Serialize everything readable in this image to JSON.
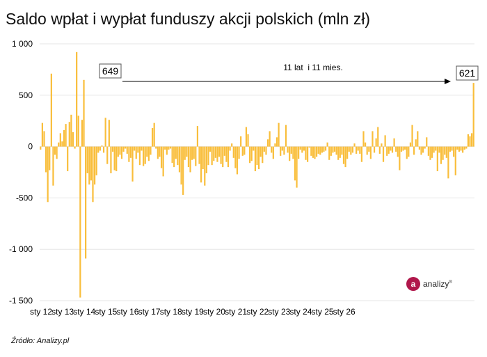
{
  "title": "Saldo wpłat i wypłat funduszy akcji polskich (mln zł)",
  "source": "Źródło: Analizy.pl",
  "logo": {
    "mark": "a",
    "text": "analizy"
  },
  "colors": {
    "bar": "#F9BE3B",
    "grid": "#E6E6E6",
    "axis": "#000000"
  },
  "chart_data": {
    "type": "bar",
    "title": "Saldo wpłat i wypłat funduszy akcji polskich (mln zł)",
    "xlabel": "",
    "ylabel": "",
    "ylim": [
      -1500,
      1000
    ],
    "yticks": [
      1000,
      500,
      0,
      -500,
      -1000,
      -1500
    ],
    "ytick_labels": [
      "1 000",
      "500",
      "0",
      "-500",
      "-1 000",
      "-1 500"
    ],
    "xtick_labels": [
      "sty 12",
      "sty 13",
      "sty 14",
      "sty 15",
      "sty 16",
      "sty 17",
      "sty 18",
      "sty 19",
      "sty 20",
      "sty 21",
      "sty 22",
      "sty 23",
      "sty 24",
      "sty 25",
      "sty 26"
    ],
    "grid": "horizontal",
    "start_period": "sty 12",
    "series": [
      {
        "values": [
          -30,
          230,
          150,
          -250,
          -540,
          -230,
          710,
          -380,
          -80,
          -120,
          40,
          130,
          50,
          160,
          220,
          -240,
          240,
          310,
          140,
          -20,
          920,
          300,
          -1470,
          260,
          649,
          -1090,
          -260,
          -370,
          -330,
          -540,
          -370,
          -280,
          -60,
          -40,
          10,
          -60,
          280,
          -170,
          260,
          -260,
          -50,
          -230,
          -240,
          -100,
          -80,
          -120,
          -50,
          -20,
          -70,
          -150,
          -110,
          -340,
          -40,
          -120,
          -60,
          -180,
          -40,
          -190,
          -170,
          -100,
          -140,
          -80,
          180,
          230,
          -20,
          -120,
          -100,
          -210,
          -290,
          -30,
          -80,
          -30,
          -20,
          -160,
          -200,
          -120,
          -180,
          -250,
          -370,
          -470,
          -130,
          -100,
          -200,
          -250,
          -130,
          -120,
          -190,
          200,
          -170,
          -350,
          -220,
          -380,
          -260,
          -180,
          -50,
          -180,
          -140,
          -110,
          -150,
          -100,
          -170,
          -200,
          -90,
          -150,
          -200,
          -40,
          30,
          -110,
          -210,
          -270,
          -120,
          100,
          -90,
          -80,
          190,
          120,
          -160,
          -140,
          -40,
          -240,
          -180,
          -220,
          -100,
          -160,
          -50,
          -80,
          70,
          150,
          -60,
          -120,
          30,
          90,
          230,
          -90,
          -40,
          -80,
          210,
          -60,
          -140,
          -70,
          -120,
          -330,
          -400,
          -120,
          -30,
          -60,
          -40,
          -130,
          -150,
          -10,
          -90,
          -110,
          -120,
          -100,
          -70,
          -80,
          -60,
          -50,
          -40,
          40
        ]
      },
      {
        "values": [
          -130,
          -90,
          -60,
          -50,
          -80,
          -130,
          -110,
          -80,
          -170,
          -200,
          -120,
          -50,
          -80,
          -60,
          30,
          -70,
          -40,
          -70,
          -150,
          150,
          40,
          -80,
          -50,
          -120,
          150,
          -60,
          80,
          190,
          -70,
          30,
          -150,
          110,
          -90,
          -70,
          -40,
          -60,
          80,
          -50,
          -100,
          -230,
          -50,
          -40,
          -30,
          -120,
          -100,
          40,
          210,
          -80,
          70,
          150,
          -30,
          -80,
          -60,
          -20,
          90,
          -90,
          -130,
          -110,
          -60,
          -40,
          -240,
          -60,
          -170,
          -130,
          -80,
          -110,
          -310,
          -50,
          -40,
          -100,
          -280,
          -30,
          -50,
          -40,
          -60,
          -30,
          -20,
          120,
          100,
          130,
          620
        ]
      }
    ],
    "annotations": [
      {
        "label": "649",
        "value": 649
      },
      {
        "label": "621",
        "value": 621
      },
      {
        "label": "11 lat  i 11 mies."
      }
    ]
  }
}
